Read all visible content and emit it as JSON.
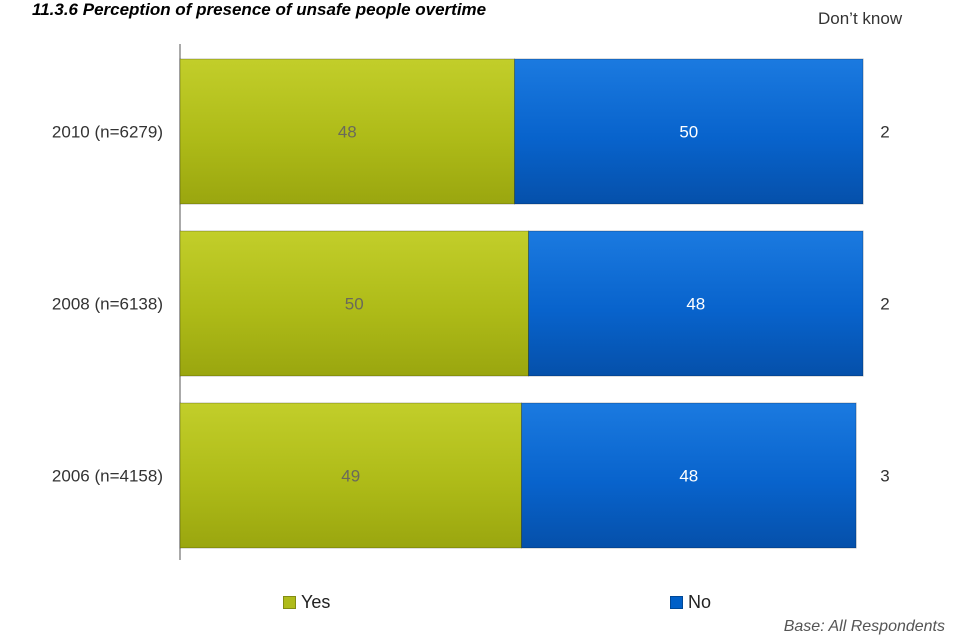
{
  "chart_data": {
    "type": "bar",
    "orientation": "horizontal",
    "stacked": true,
    "title": "11.3.6 Perception of presence of unsafe people overtime",
    "categories": [
      "2010 (n=6279)",
      "2008 (n=6138)",
      "2006 (n=4158)"
    ],
    "series": [
      {
        "name": "Yes",
        "color": "#afbb1a",
        "values": [
          48,
          50,
          49
        ]
      },
      {
        "name": "No",
        "color": "#0060c8",
        "values": [
          50,
          48,
          48
        ]
      }
    ],
    "dont_know": {
      "header": "Don’t know",
      "values": [
        2,
        2,
        3
      ]
    },
    "xlim": [
      0,
      100
    ],
    "grid": false,
    "legend_position": "bottom"
  },
  "footer": {
    "base_note": "Base: All Respondents"
  }
}
